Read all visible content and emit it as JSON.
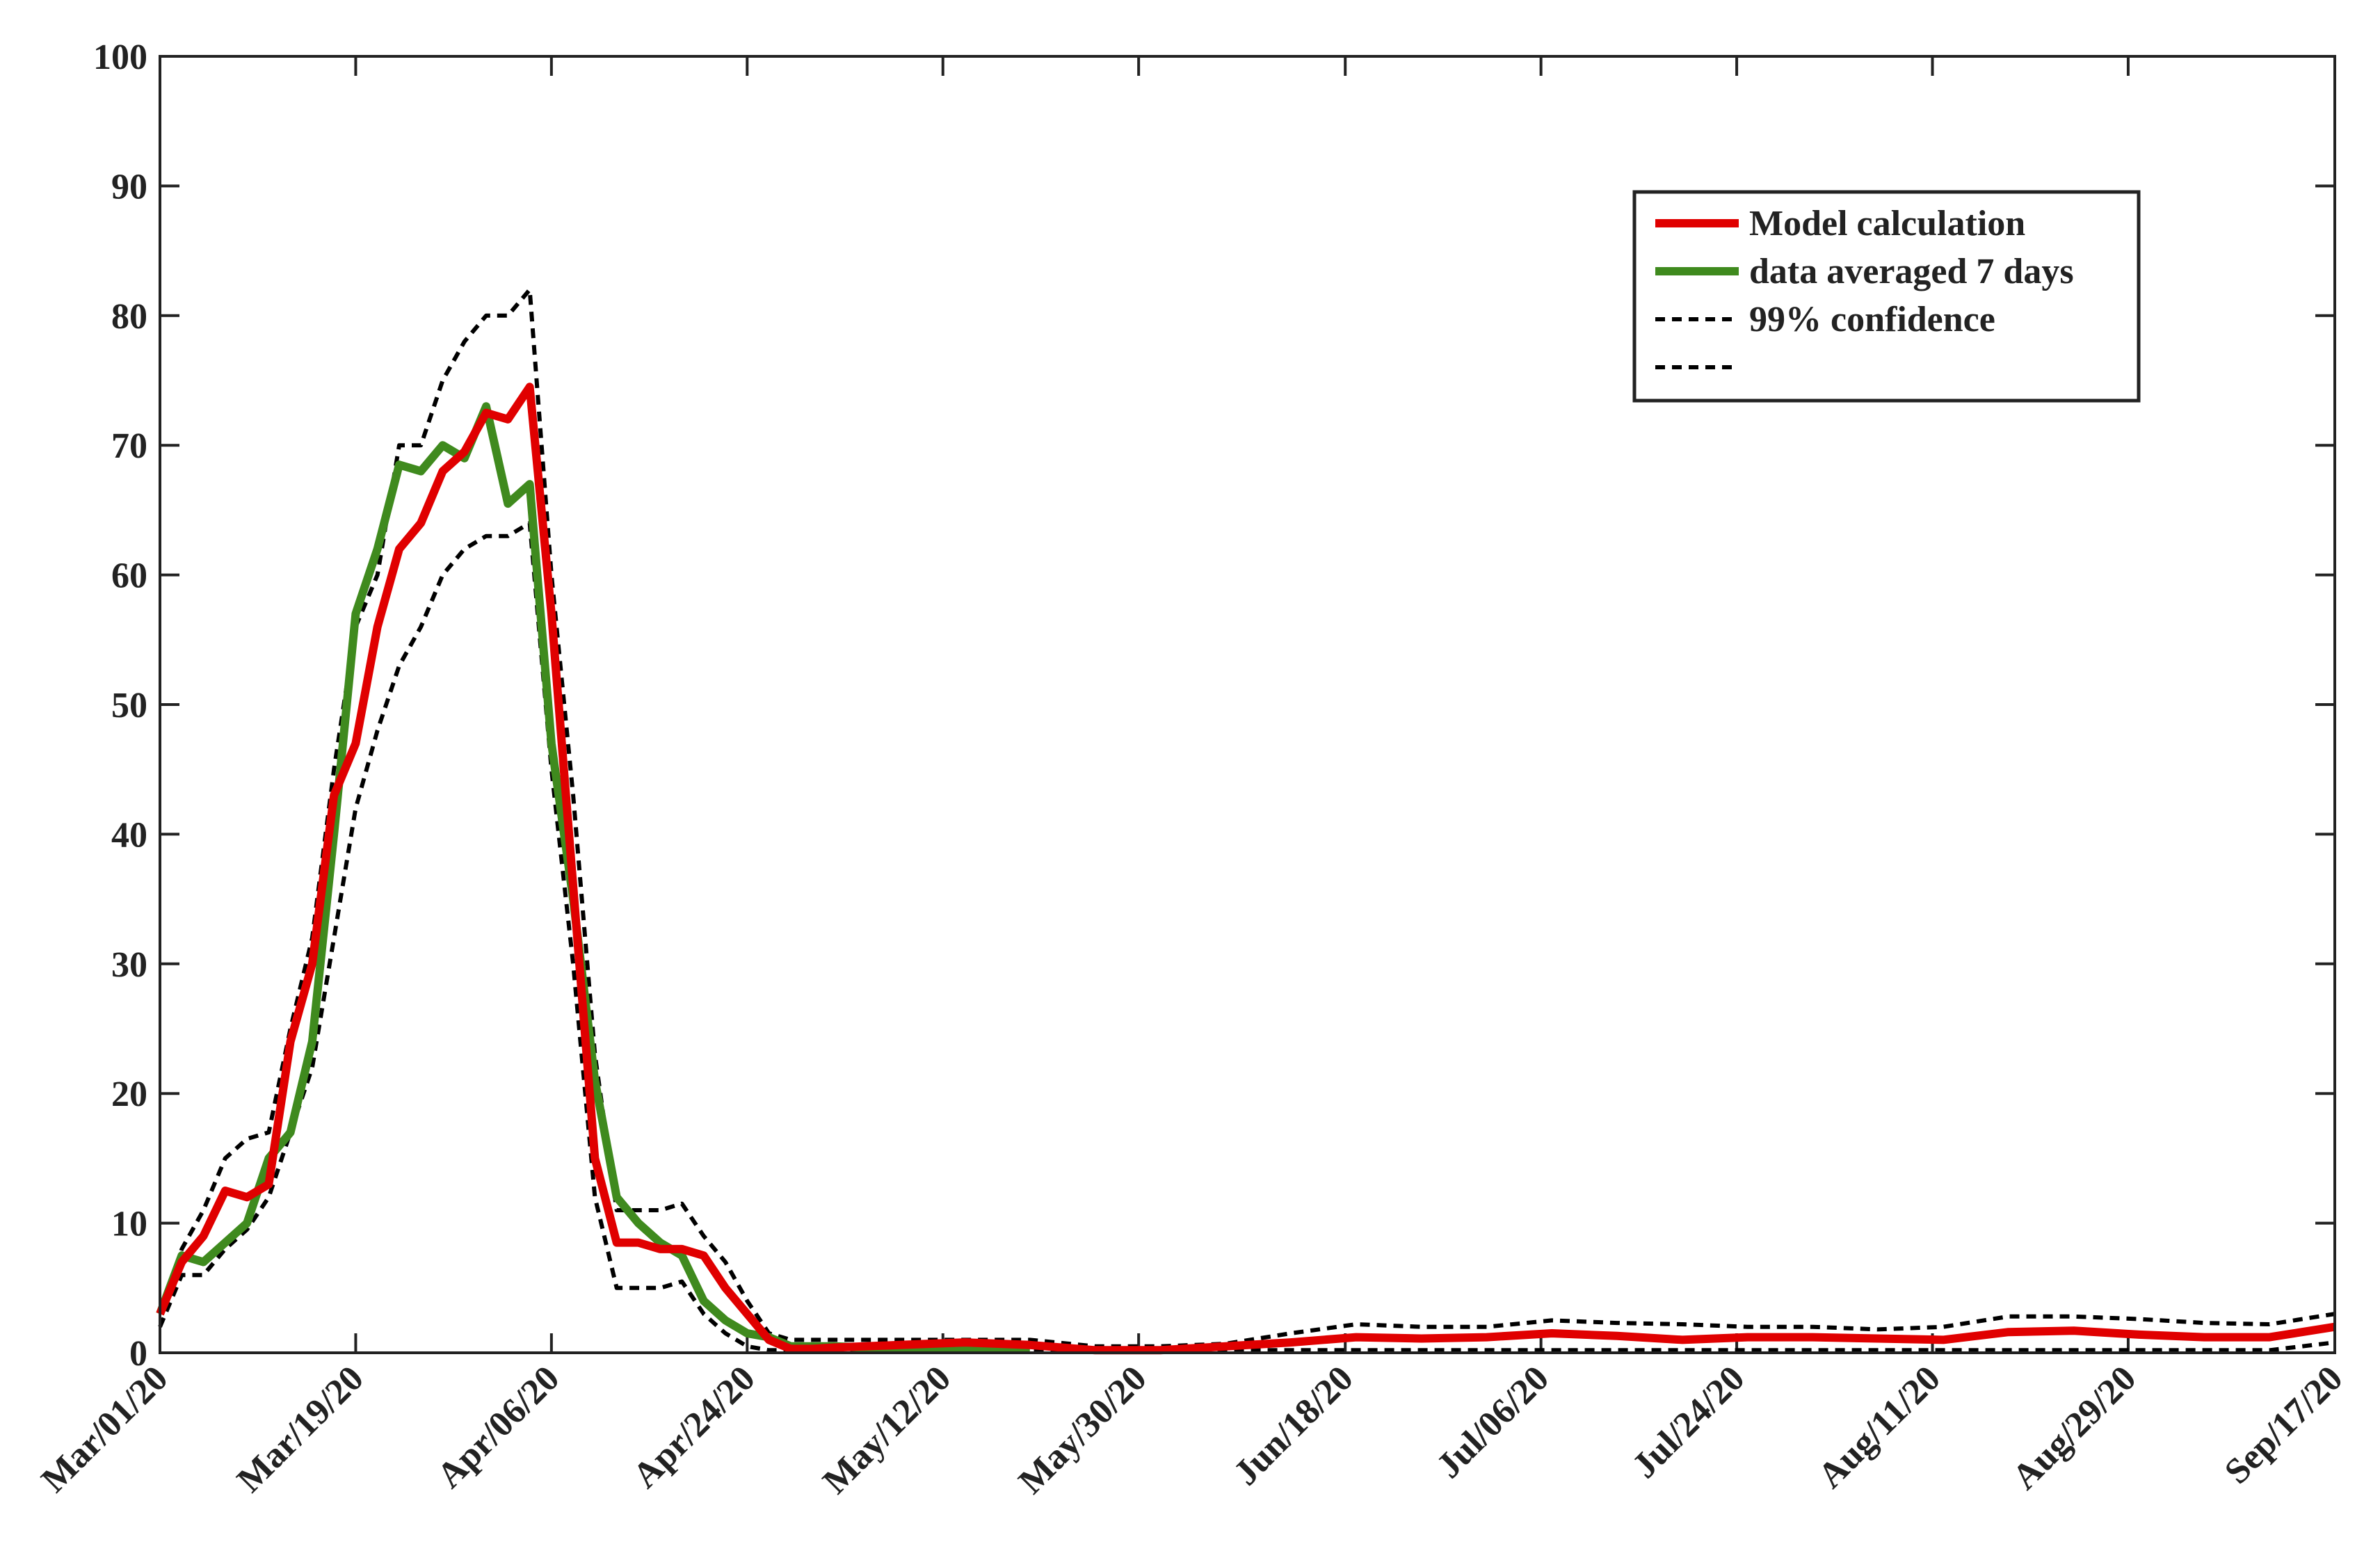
{
  "chart_data": {
    "type": "line",
    "x": [
      "2020-03-01",
      "2020-03-03",
      "2020-03-05",
      "2020-03-07",
      "2020-03-09",
      "2020-03-11",
      "2020-03-13",
      "2020-03-15",
      "2020-03-17",
      "2020-03-19",
      "2020-03-21",
      "2020-03-23",
      "2020-03-25",
      "2020-03-27",
      "2020-03-29",
      "2020-03-31",
      "2020-04-02",
      "2020-04-04",
      "2020-04-06",
      "2020-04-08",
      "2020-04-10",
      "2020-04-12",
      "2020-04-14",
      "2020-04-16",
      "2020-04-18",
      "2020-04-20",
      "2020-04-22",
      "2020-04-24",
      "2020-04-26",
      "2020-04-28",
      "2020-04-30",
      "2020-05-02",
      "2020-05-08",
      "2020-05-14",
      "2020-05-20",
      "2020-05-26",
      "2020-06-01",
      "2020-06-07",
      "2020-06-13",
      "2020-06-19",
      "2020-06-25",
      "2020-07-01",
      "2020-07-07",
      "2020-07-13",
      "2020-07-19",
      "2020-07-25",
      "2020-07-31",
      "2020-08-06",
      "2020-08-12",
      "2020-08-18",
      "2020-08-24",
      "2020-08-30",
      "2020-09-05",
      "2020-09-11",
      "2020-09-17"
    ],
    "series": [
      {
        "name": "Model  calculation",
        "color": "#e00000",
        "style": "solid",
        "values": [
          3,
          7,
          9,
          12.5,
          12,
          13,
          24,
          30,
          43,
          47,
          56,
          62,
          64,
          68,
          69.5,
          72.5,
          72,
          74.5,
          57,
          36,
          15,
          8.5,
          8.5,
          8,
          8,
          7.5,
          5,
          3,
          1,
          0.3,
          0.3,
          0.4,
          0.6,
          0.8,
          0.6,
          0.2,
          0.2,
          0.5,
          0.8,
          1.2,
          1.1,
          1.2,
          1.5,
          1.3,
          1.0,
          1.2,
          1.2,
          1.1,
          1.0,
          1.6,
          1.7,
          1.4,
          1.2,
          1.2,
          2.0
        ]
      },
      {
        "name": "data averaged 7 days",
        "color": "#3f8a1e",
        "style": "solid",
        "values": [
          3,
          7.5,
          7,
          8.5,
          10,
          15,
          17,
          24,
          40,
          57,
          62,
          68.5,
          68,
          70,
          69,
          73,
          65.5,
          67,
          47,
          35,
          21,
          12,
          10,
          8.5,
          7.5,
          4,
          2.5,
          1.5,
          1.2,
          0.5,
          0.5,
          0.5,
          0.3,
          0.3,
          0.3,
          null,
          null,
          null,
          null,
          null,
          null,
          null,
          null,
          null,
          null,
          null,
          null,
          null,
          null,
          null,
          null,
          null,
          null,
          null,
          null
        ]
      },
      {
        "name": "99% confidence",
        "color": "#000000",
        "style": "dashed",
        "values": [
          3,
          8,
          11,
          15,
          16.5,
          17,
          25,
          32,
          45,
          56,
          60,
          70,
          70,
          75,
          78,
          80,
          80,
          82,
          60,
          43,
          23,
          11,
          11,
          11,
          11.5,
          9,
          7,
          4,
          1.5,
          1,
          1,
          1,
          1,
          1,
          1,
          0.5,
          0.5,
          0.7,
          1.5,
          2.2,
          2,
          2,
          2.5,
          2.3,
          2.2,
          2.0,
          2.0,
          1.8,
          2.0,
          2.8,
          2.8,
          2.6,
          2.3,
          2.2,
          3.0
        ]
      },
      {
        "color": "#000000",
        "style": "dashed",
        "values": [
          2,
          6,
          6,
          8,
          9.5,
          12,
          17,
          22,
          32,
          42,
          48,
          53,
          56,
          60,
          62,
          63,
          63,
          64,
          45,
          30,
          12,
          5,
          5,
          5,
          5.5,
          3,
          1.5,
          0.5,
          0.2,
          0.2,
          0.2,
          0.2,
          0.2,
          0.2,
          0.2,
          0.2,
          0.2,
          0.2,
          0.2,
          0.2,
          0.2,
          0.2,
          0.2,
          0.2,
          0.2,
          0.2,
          0.2,
          0.2,
          0.2,
          0.2,
          0.2,
          0.2,
          0.2,
          0.2,
          0.8
        ]
      }
    ],
    "xlim": [
      "2020-03-01",
      "2020-09-17"
    ],
    "xticks": [
      {
        "value": "2020-03-01",
        "label": "Mar/01/20"
      },
      {
        "value": "2020-03-19",
        "label": "Mar/19/20"
      },
      {
        "value": "2020-04-06",
        "label": "Apr/06/20"
      },
      {
        "value": "2020-04-24",
        "label": "Apr/24/20"
      },
      {
        "value": "2020-05-12",
        "label": "May/12/20"
      },
      {
        "value": "2020-05-30",
        "label": "May/30/20"
      },
      {
        "value": "2020-06-18",
        "label": "Jun/18/20"
      },
      {
        "value": "2020-07-06",
        "label": "Jul/06/20"
      },
      {
        "value": "2020-07-24",
        "label": "Jul/24/20"
      },
      {
        "value": "2020-08-11",
        "label": "Aug/11/20"
      },
      {
        "value": "2020-08-29",
        "label": "Aug/29/20"
      },
      {
        "value": "2020-09-17",
        "label": "Sep/17/20"
      }
    ],
    "ylim": [
      0,
      100
    ],
    "yticks": [
      0,
      10,
      20,
      30,
      40,
      50,
      60,
      70,
      80,
      90,
      100
    ],
    "legend": "upper right",
    "grid": false
  }
}
